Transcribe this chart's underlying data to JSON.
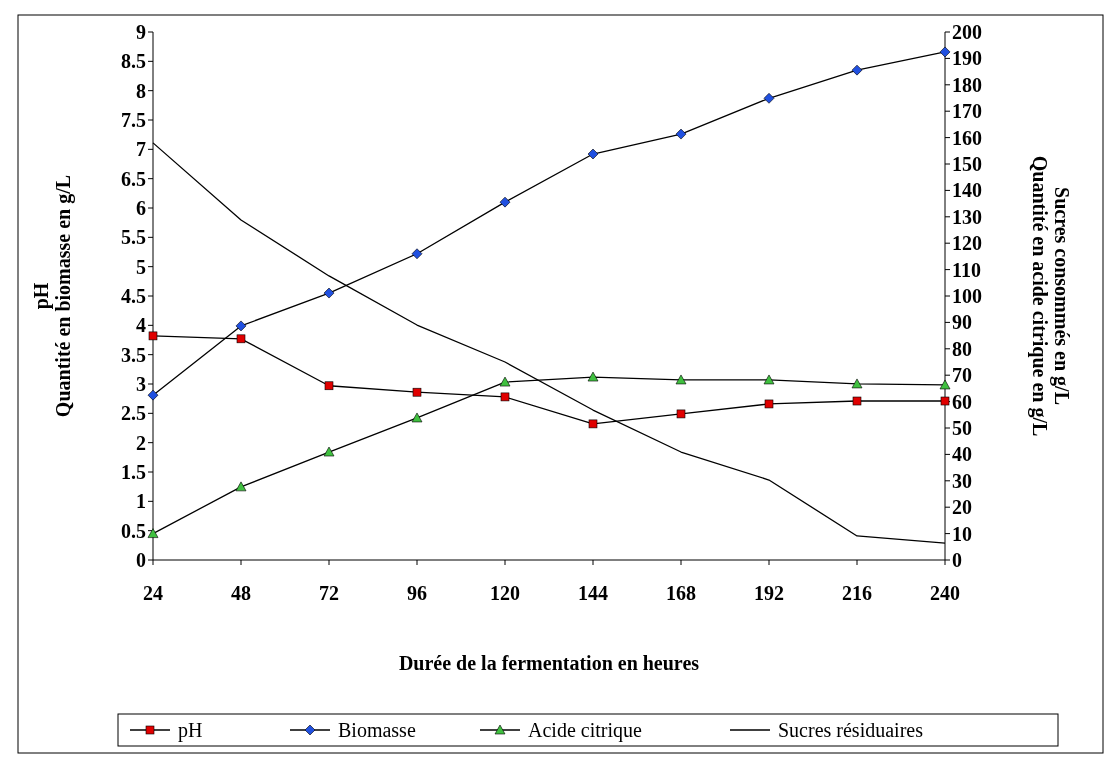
{
  "chart_data": {
    "type": "line",
    "xlabel": "Durée de la fermentation en heures",
    "ylabel": "pH\nQuantité en biomasse en g/L",
    "y2label": "Quantité en acide citrique en g/L\nSucres consommés en g/L",
    "x": [
      24,
      48,
      72,
      96,
      120,
      144,
      168,
      192,
      216,
      240
    ],
    "xlim": [
      24,
      240
    ],
    "xticks": [
      24,
      48,
      72,
      96,
      120,
      144,
      168,
      192,
      216,
      240
    ],
    "ylim": [
      0,
      9
    ],
    "yticks": [
      0,
      0.5,
      1,
      1.5,
      2,
      2.5,
      3,
      3.5,
      4,
      4.5,
      5,
      5.5,
      6,
      6.5,
      7,
      7.5,
      8,
      8.5,
      9
    ],
    "y2lim": [
      0,
      200
    ],
    "y2ticks": [
      0,
      10,
      20,
      30,
      40,
      50,
      60,
      70,
      80,
      90,
      100,
      110,
      120,
      130,
      140,
      150,
      160,
      170,
      180,
      190,
      200
    ],
    "grid": false,
    "legend": "bottom",
    "series": [
      {
        "name": "pH",
        "color": "#e00000",
        "marker": "square",
        "values": [
          3.82,
          3.77,
          2.97,
          2.86,
          2.78,
          2.32,
          2.49,
          2.66,
          2.71,
          2.71
        ]
      },
      {
        "name": "Biomasse",
        "color": "#2050e0",
        "marker": "diamond",
        "values": [
          2.81,
          3.99,
          4.55,
          5.22,
          6.1,
          6.92,
          7.26,
          7.87,
          8.35,
          8.66
        ]
      },
      {
        "name": "Acide citrique",
        "color": "#40c040",
        "marker": "triangle",
        "axis": "y2",
        "values": [
          10,
          27.7,
          40.9,
          53.8,
          67.4,
          69.3,
          68.2,
          68.2,
          66.7,
          66.3
        ]
      },
      {
        "name": "Sucres résiduaires",
        "color": "#000000",
        "marker": "none",
        "axis": "y2",
        "values": [
          158,
          128.8,
          107.6,
          89,
          75,
          56.8,
          40.9,
          30.3,
          9.1,
          6.4
        ]
      }
    ]
  }
}
